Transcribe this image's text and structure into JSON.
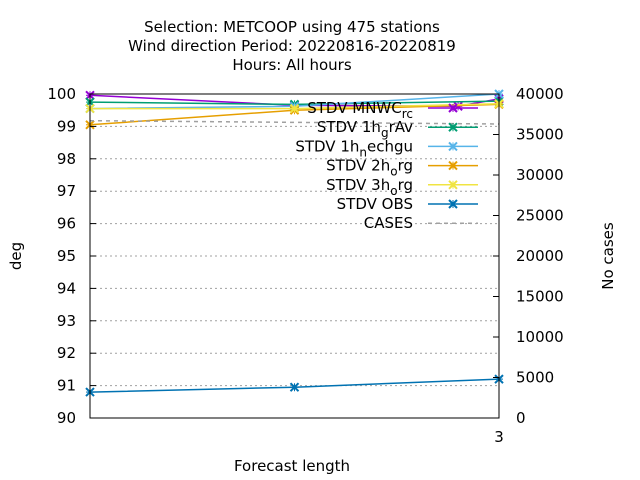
{
  "chart_data": {
    "type": "line",
    "title_lines": [
      "Selection: METCOOP using   475 stations",
      "Wind direction   Period: 20220816-20220819",
      "Hours:  All hours"
    ],
    "xlabel": "Forecast length",
    "ylabel": "deg",
    "y2label": "No cases",
    "xlim": [
      0,
      3
    ],
    "x_ticks": [
      3
    ],
    "ylim": [
      90,
      100
    ],
    "y_ticks": [
      90,
      91,
      92,
      93,
      94,
      95,
      96,
      97,
      98,
      99,
      100
    ],
    "y2lim": [
      0,
      40000
    ],
    "y2_ticks": [
      0,
      5000,
      10000,
      15000,
      20000,
      25000,
      30000,
      35000,
      40000
    ],
    "grid": "horizontal dotted at left-axis ticks",
    "legend_position": "top-right",
    "series": [
      {
        "name": "STDV MNWC_rc",
        "legend_text": "STDV MNWC",
        "legend_sub": "rc",
        "color": "#9400d3",
        "marker": "x",
        "axis": "y",
        "x": [
          0,
          1.5,
          2.7,
          3
        ],
        "values": [
          99.96,
          99.65,
          99.62,
          99.85
        ]
      },
      {
        "name": "STDV 1h_grAv",
        "legend_text": "STDV 1h",
        "legend_sub": "g",
        "legend_after": "rAv",
        "color": "#009e73",
        "marker": "x",
        "axis": "y",
        "x": [
          0,
          1.5,
          3
        ],
        "values": [
          99.75,
          99.68,
          99.78
        ]
      },
      {
        "name": "STDV 1h_nechgu",
        "legend_text": "STDV 1h",
        "legend_sub": "n",
        "legend_after": "echgu",
        "color": "#56b4e9",
        "marker": "x",
        "axis": "y",
        "x": [
          0,
          1.5,
          3
        ],
        "values": [
          99.55,
          99.62,
          100.0
        ]
      },
      {
        "name": "STDV 2h_org",
        "legend_text": "STDV 2h",
        "legend_sub": "o",
        "legend_after": "rg",
        "color": "#e69f00",
        "marker": "x",
        "axis": "y",
        "x": [
          0,
          1.5,
          3
        ],
        "values": [
          99.05,
          99.5,
          99.68
        ]
      },
      {
        "name": "STDV 3h_org",
        "legend_text": "STDV 3h",
        "legend_sub": "o",
        "legend_after": "rg",
        "color": "#f0e442",
        "marker": "x",
        "axis": "y",
        "x": [
          0,
          1.5,
          3
        ],
        "values": [
          99.55,
          99.55,
          99.7
        ]
      },
      {
        "name": "STDV OBS",
        "legend_text": "STDV OBS",
        "color": "#0072b2",
        "marker": "x",
        "axis": "y",
        "x": [
          0,
          1.5,
          3
        ],
        "values": [
          90.8,
          90.95,
          91.2
        ]
      },
      {
        "name": "CASES",
        "legend_text": "CASES",
        "color": "#a0a0a0",
        "dash": true,
        "axis": "y2",
        "x": [
          0,
          3
        ],
        "values": [
          36700,
          36300
        ]
      }
    ]
  }
}
